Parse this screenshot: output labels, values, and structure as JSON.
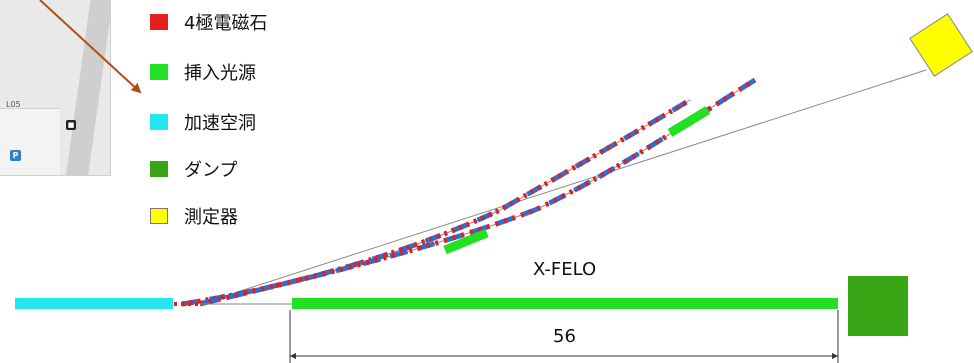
{
  "legend": [
    {
      "label": "4極電磁石",
      "color": "#e41d1d"
    },
    {
      "label": "挿入光源",
      "color": "#22e022"
    },
    {
      "label": "加速空洞",
      "color": "#23e6f0"
    },
    {
      "label": "ダンプ",
      "color": "#3aa514"
    },
    {
      "label": "測定器",
      "color": "#ffff00"
    }
  ],
  "map_inset": {
    "text": "L05",
    "bus_icon": "bus-icon",
    "parking_icon": "parking-icon",
    "parking_text": "P"
  },
  "beamline": {
    "name": "X-FELO",
    "length": "56"
  },
  "colors": {
    "quadrupole": "#e41d1d",
    "insertion_device": "#22e022",
    "cavity": "#23e6f0",
    "dump": "#3aa514",
    "detector": "#ffff00",
    "dipole": "#2a6fd6",
    "pointer": "#b04f1a"
  }
}
